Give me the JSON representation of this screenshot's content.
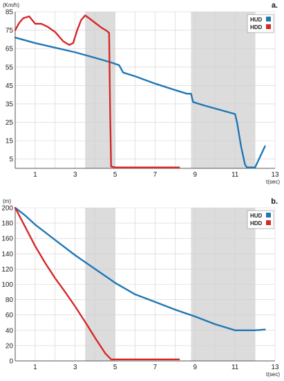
{
  "chart_data": [
    {
      "type": "line",
      "panel_label": "a.",
      "ylabel": "(Km/h)",
      "xlabel": "t(sec)",
      "xlim": [
        0,
        13
      ],
      "ylim": [
        0,
        85
      ],
      "x_ticks": [
        1,
        3,
        5,
        7,
        9,
        11,
        13
      ],
      "y_ticks": [
        5,
        15,
        25,
        35,
        45,
        55,
        65,
        75,
        85
      ],
      "grid": true,
      "legend_position": "top-right",
      "shaded_regions": [
        [
          3.5,
          5.0
        ],
        [
          8.8,
          12.0
        ]
      ],
      "series": [
        {
          "name": "HUD",
          "color": "#1f77b4",
          "x": [
            0,
            0.5,
            1,
            2,
            3,
            4,
            4.8,
            5.2,
            5.4,
            6,
            7,
            8,
            8.6,
            8.8,
            8.9,
            9.5,
            10,
            10.5,
            11,
            11.1,
            11.3,
            11.5,
            11.6,
            11.8,
            12,
            12.5
          ],
          "y": [
            71,
            69.5,
            68,
            65.5,
            63,
            60,
            57.5,
            56,
            52,
            50,
            46,
            42.5,
            40.5,
            40.5,
            36,
            34,
            32.5,
            31,
            29.5,
            25,
            12,
            2,
            0.5,
            0.5,
            0.5,
            12
          ]
        },
        {
          "name": "HDD",
          "color": "#d62728",
          "x": [
            0,
            0.2,
            0.4,
            0.7,
            1,
            1.3,
            1.6,
            2,
            2.4,
            2.7,
            2.9,
            3.1,
            3.3,
            3.5,
            3.7,
            4,
            4.3,
            4.6,
            4.7,
            4.75,
            4.8,
            5,
            6,
            7,
            8.2
          ],
          "y": [
            75,
            79,
            81.5,
            82.5,
            78.5,
            78.5,
            77,
            74,
            69,
            67,
            68,
            75,
            80.5,
            83,
            81.5,
            79,
            76.5,
            74.5,
            73.5,
            30,
            1,
            0.5,
            0.5,
            0.5,
            0.5
          ]
        }
      ]
    },
    {
      "type": "line",
      "panel_label": "b.",
      "ylabel": "(m)",
      "xlabel": "t(sec)",
      "xlim": [
        0,
        13
      ],
      "ylim": [
        0,
        200
      ],
      "x_ticks": [
        1,
        3,
        5,
        7,
        9,
        11,
        13
      ],
      "y_ticks": [
        0,
        20,
        40,
        60,
        80,
        100,
        120,
        140,
        160,
        180,
        200
      ],
      "grid": true,
      "legend_position": "top-right",
      "shaded_regions": [
        [
          3.5,
          5.0
        ],
        [
          8.8,
          12.0
        ]
      ],
      "series": [
        {
          "name": "HUD",
          "color": "#1f77b4",
          "x": [
            0,
            0.5,
            1,
            2,
            3,
            4,
            5,
            6,
            7,
            8,
            9,
            10,
            10.5,
            11,
            11.5,
            12,
            12.5
          ],
          "y": [
            200,
            190,
            178,
            158,
            138,
            120,
            102,
            87,
            77,
            67,
            58,
            48,
            44,
            40,
            40,
            40,
            41
          ]
        },
        {
          "name": "HDD",
          "color": "#d62728",
          "x": [
            0,
            0.5,
            1,
            1.5,
            2,
            2.5,
            3,
            3.5,
            4,
            4.5,
            4.8,
            5,
            6,
            7,
            8.2
          ],
          "y": [
            200,
            175,
            150,
            128,
            108,
            90,
            71,
            51,
            30,
            10,
            2,
            2,
            2,
            2,
            2
          ]
        }
      ]
    }
  ]
}
